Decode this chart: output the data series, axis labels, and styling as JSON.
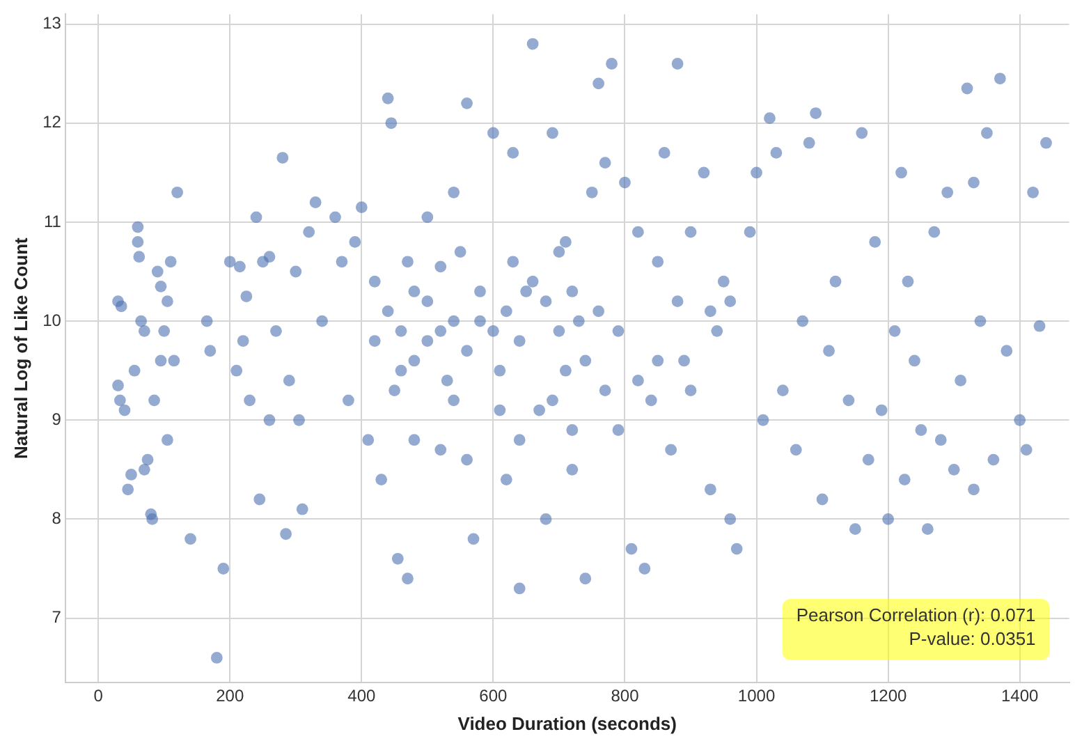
{
  "chart_data": {
    "type": "scatter",
    "xlabel": "Video Duration (seconds)",
    "ylabel": "Natural Log of Like Count",
    "annotations": [
      "Pearson Correlation (r): 0.071\nP-value: 0.0351"
    ],
    "xlim": [
      -50,
      1475
    ],
    "ylim": [
      6.35,
      13.1
    ],
    "xticks": [
      0,
      200,
      400,
      600,
      800,
      1000,
      1200,
      1400
    ],
    "yticks": [
      7,
      8,
      9,
      10,
      11,
      12,
      13
    ],
    "grid": true,
    "legend": false,
    "marker": "circle",
    "series": [
      {
        "color": "#4c72b0",
        "x": [
          30,
          35,
          30,
          33,
          40,
          45,
          50,
          55,
          60,
          60,
          62,
          65,
          70,
          75,
          80,
          82,
          85,
          90,
          95,
          100,
          105,
          110,
          120,
          115,
          105,
          70,
          95,
          140,
          165,
          170,
          180,
          190,
          200,
          210,
          215,
          220,
          225,
          240,
          250,
          260,
          230,
          245,
          260,
          270,
          280,
          285,
          290,
          300,
          305,
          320,
          310,
          330,
          340,
          360,
          370,
          380,
          390,
          400,
          410,
          420,
          430,
          440,
          445,
          455,
          470,
          460,
          480,
          500,
          500,
          520,
          540,
          520,
          540,
          560,
          570,
          580,
          600,
          610,
          620,
          630,
          640,
          650,
          660,
          670,
          680,
          690,
          700,
          710,
          720,
          730,
          740,
          750,
          760,
          770,
          780,
          790,
          790,
          800,
          810,
          820,
          830,
          840,
          850,
          860,
          870,
          880,
          890,
          900,
          920,
          930,
          940,
          950,
          960,
          970,
          990,
          1000,
          1010,
          1020,
          1030,
          1040,
          1060,
          1070,
          1080,
          1090,
          1100,
          1110,
          1120,
          1140,
          1150,
          1160,
          1170,
          1180,
          1190,
          1200,
          1210,
          1220,
          1225,
          1230,
          1240,
          1250,
          1270,
          1290,
          1300,
          1310,
          1320,
          1330,
          1340,
          1350,
          1360,
          1370,
          1380,
          1400,
          1410,
          1420,
          1430,
          1440,
          1330,
          1280,
          1260,
          420,
          440,
          460,
          480,
          500,
          520,
          540,
          560,
          580,
          600,
          620,
          640,
          660,
          680,
          700,
          720,
          740,
          760,
          450,
          530,
          610,
          690,
          770,
          470,
          550,
          630,
          710,
          480,
          560,
          640,
          720,
          850,
          880,
          930,
          960,
          900,
          820
        ],
        "values": [
          10.2,
          10.15,
          9.35,
          9.2,
          9.1,
          8.3,
          8.45,
          9.5,
          10.95,
          10.8,
          10.65,
          10,
          9.9,
          8.6,
          8.05,
          8.0,
          9.2,
          10.5,
          10.35,
          9.9,
          10.2,
          10.6,
          11.3,
          9.6,
          8.8,
          8.5,
          9.6,
          7.8,
          10.0,
          9.7,
          6.6,
          7.5,
          10.6,
          9.5,
          10.55,
          9.8,
          10.25,
          11.05,
          10.6,
          10.65,
          9.2,
          8.2,
          9.0,
          9.9,
          11.65,
          7.85,
          9.4,
          10.5,
          9.0,
          10.9,
          8.1,
          11.2,
          10.0,
          11.05,
          10.6,
          9.2,
          10.8,
          11.15,
          8.8,
          10.4,
          8.4,
          12.25,
          12.0,
          7.6,
          7.4,
          9.5,
          10.3,
          9.8,
          11.05,
          10.55,
          9.2,
          8.7,
          11.3,
          12.2,
          7.8,
          10.0,
          11.9,
          9.5,
          8.4,
          11.7,
          7.3,
          10.3,
          12.8,
          9.1,
          8.0,
          11.9,
          10.7,
          9.5,
          8.5,
          10.0,
          7.4,
          11.3,
          12.4,
          11.6,
          12.6,
          8.9,
          9.9,
          11.4,
          7.7,
          10.9,
          7.5,
          9.2,
          10.6,
          11.7,
          8.7,
          12.6,
          9.6,
          10.9,
          11.5,
          8.3,
          9.9,
          10.4,
          8.0,
          7.7,
          10.9,
          11.5,
          9.0,
          12.05,
          11.7,
          9.3,
          8.7,
          10.0,
          11.8,
          12.1,
          8.2,
          9.7,
          10.4,
          9.2,
          7.9,
          11.9,
          8.6,
          10.8,
          9.1,
          8.0,
          9.9,
          11.5,
          8.4,
          10.4,
          9.6,
          8.9,
          10.9,
          11.3,
          8.5,
          9.4,
          12.35,
          11.4,
          10.0,
          11.9,
          8.6,
          12.45,
          9.7,
          9.0,
          8.7,
          11.3,
          9.95,
          11.8,
          8.3,
          8.8,
          7.9,
          9.8,
          10.1,
          9.9,
          9.6,
          10.2,
          9.9,
          10.0,
          9.7,
          10.3,
          9.9,
          10.1,
          9.8,
          10.4,
          10.2,
          9.9,
          10.3,
          9.6,
          10.1,
          9.3,
          9.4,
          9.1,
          9.2,
          9.3,
          10.6,
          10.7,
          10.6,
          10.8,
          8.8,
          8.6,
          8.8,
          8.9,
          9.6,
          10.2,
          10.1,
          10.2,
          9.3,
          9.4
        ]
      }
    ]
  }
}
